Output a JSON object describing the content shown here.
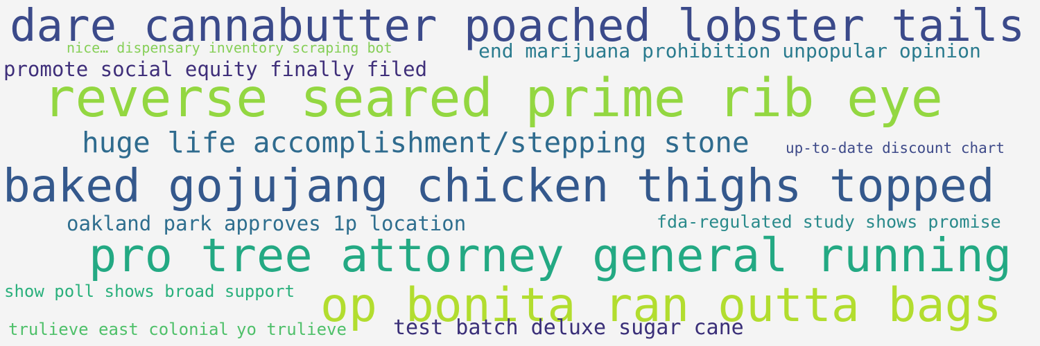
{
  "phrases": [
    {
      "text": "dare cannabutter poached lobster tails",
      "color": "#3b4a8a"
    },
    {
      "text": "nice… dispensary inventory scraping bot",
      "color": "#86cf57"
    },
    {
      "text": "end marijuana prohibition unpopular opinion",
      "color": "#2a7b8e"
    },
    {
      "text": "promote social equity finally filed",
      "color": "#3f2f7a"
    },
    {
      "text": "reverse seared prime rib eye",
      "color": "#93d741"
    },
    {
      "text": "huge life accomplishment/stepping stone",
      "color": "#2f6b8e"
    },
    {
      "text": "up-to-date discount chart",
      "color": "#3e4a89"
    },
    {
      "text": "baked gojujang chicken thighs topped",
      "color": "#34588c"
    },
    {
      "text": "oakland park approves 1p location",
      "color": "#2e6e8e"
    },
    {
      "text": "fda-regulated study shows promise",
      "color": "#2a8a8b"
    },
    {
      "text": "pro tree attorney general running",
      "color": "#23a983"
    },
    {
      "text": "show poll shows broad support",
      "color": "#2ab07c"
    },
    {
      "text": "op bonita ran outta bags",
      "color": "#b2dd2f"
    },
    {
      "text": "trulieve east colonial",
      "color": "#4fc06a"
    },
    {
      "text": "yo trulieve",
      "color": "#4fc06a"
    },
    {
      "text": "test batch deluxe sugar cane",
      "color": "#3a2f78"
    }
  ]
}
